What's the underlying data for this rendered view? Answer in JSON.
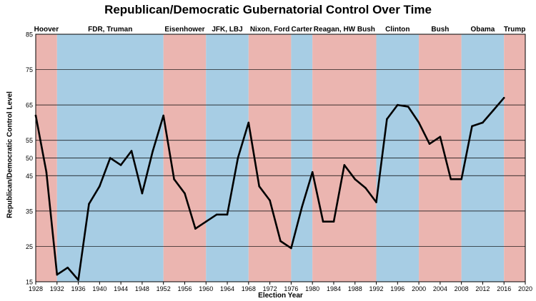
{
  "chart_data": {
    "type": "line",
    "title": "Republican/Democratic Gubernatorial Control Over Time",
    "xlabel": "Election Year",
    "ylabel": "Republican/Democratic Control Level",
    "xlim": [
      1928,
      2020
    ],
    "ylim": [
      15,
      85
    ],
    "x_ticks": [
      "1928",
      "1932",
      "1936",
      "1940",
      "1944",
      "1948",
      "1952",
      "1956",
      "1960",
      "1964",
      "1968",
      "1972",
      "1976",
      "1980",
      "1984",
      "1988",
      "1992",
      "1996",
      "2000",
      "2004",
      "2008",
      "2012",
      "2016",
      "2020"
    ],
    "y_ticks": [
      "15",
      "25",
      "35",
      "45",
      "50",
      "55",
      "65",
      "75",
      "85"
    ],
    "grid": true,
    "eras": [
      {
        "label": "Hoover",
        "start": 1928,
        "end": 1932,
        "party": "R"
      },
      {
        "label": "FDR, Truman",
        "start": 1932,
        "end": 1952,
        "party": "D"
      },
      {
        "label": "Eisenhower",
        "start": 1952,
        "end": 1960,
        "party": "R"
      },
      {
        "label": "JFK, LBJ",
        "start": 1960,
        "end": 1968,
        "party": "D"
      },
      {
        "label": "Nixon, Ford",
        "start": 1968,
        "end": 1976,
        "party": "R"
      },
      {
        "label": "Carter",
        "start": 1976,
        "end": 1980,
        "party": "D"
      },
      {
        "label": "Reagan, HW Bush",
        "start": 1980,
        "end": 1992,
        "party": "R"
      },
      {
        "label": "Clinton",
        "start": 1992,
        "end": 2000,
        "party": "D"
      },
      {
        "label": "Bush",
        "start": 2000,
        "end": 2008,
        "party": "R"
      },
      {
        "label": "Obama",
        "start": 2008,
        "end": 2016,
        "party": "D"
      },
      {
        "label": "Trump",
        "start": 2016,
        "end": 2020,
        "party": "R"
      }
    ],
    "series": [
      {
        "x": [
          1928,
          1930,
          1932,
          1934,
          1936,
          1938,
          1940,
          1942,
          1944,
          1946,
          1948,
          1950,
          1952,
          1954,
          1956,
          1958,
          1960,
          1962,
          1964,
          1966,
          1968,
          1970,
          1972,
          1974,
          1976,
          1978,
          1980,
          1982,
          1984,
          1986,
          1988,
          1990,
          1992,
          1994,
          1996,
          1998,
          2000,
          2002,
          2004,
          2006,
          2008,
          2010,
          2012,
          2014,
          2016
        ],
        "y": [
          62,
          46,
          17,
          19,
          15.5,
          37,
          42,
          50,
          48,
          52,
          40,
          52,
          62,
          44,
          40,
          30,
          32,
          34,
          34,
          50,
          60,
          42,
          38,
          26.5,
          24.5,
          36,
          46,
          32,
          32,
          48,
          44,
          41.5,
          37.5,
          61,
          65,
          64.5,
          60,
          54,
          56,
          44,
          44,
          59,
          60,
          63.5,
          67
        ]
      }
    ],
    "colors": {
      "republican": "#ebb5b0",
      "democratic": "#a7cde4",
      "line": "#000000",
      "grid": "#000000"
    }
  }
}
